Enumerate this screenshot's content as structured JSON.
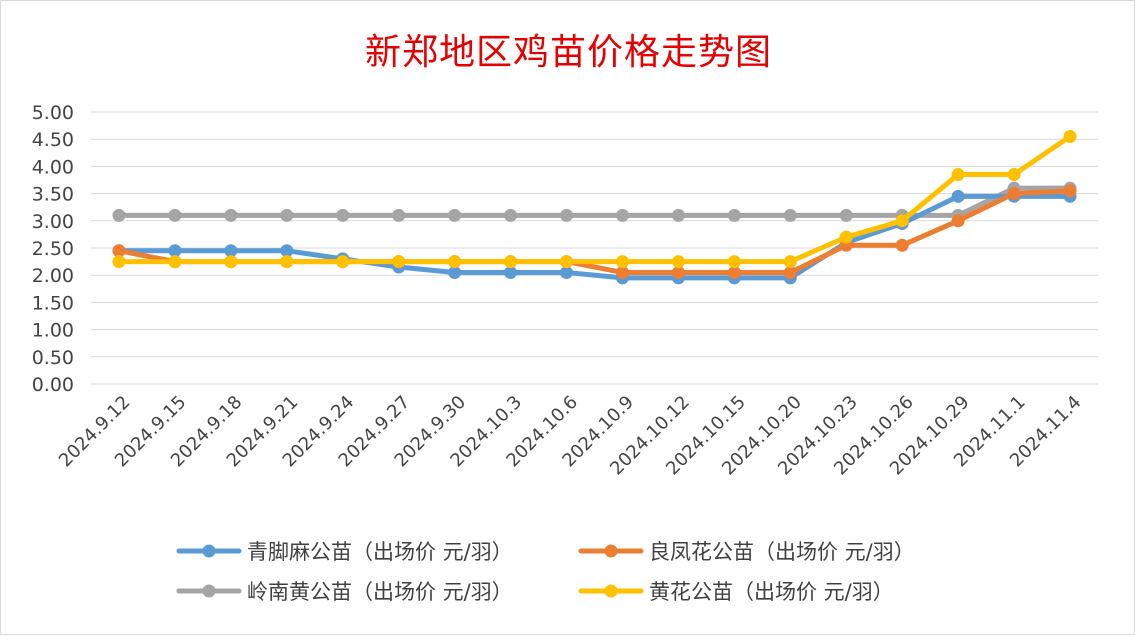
{
  "chart_data": {
    "type": "line",
    "title": "新郑地区鸡苗价格走势图",
    "xlabel": "",
    "ylabel": "",
    "ylim": [
      0,
      5
    ],
    "yticks": [
      "0.00",
      "0.50",
      "1.00",
      "1.50",
      "2.00",
      "2.50",
      "3.00",
      "3.50",
      "4.00",
      "4.50",
      "5.00"
    ],
    "grid": true,
    "legend_position": "bottom",
    "categories": [
      "2024.9.12",
      "2024.9.15",
      "2024.9.18",
      "2024.9.21",
      "2024.9.24",
      "2024.9.27",
      "2024.9.30",
      "2024.10.3",
      "2024.10.6",
      "2024.10.9",
      "2024.10.12",
      "2024.10.15",
      "2024.10.20",
      "2024.10.23",
      "2024.10.26",
      "2024.10.29",
      "2024.11.1",
      "2024.11.4"
    ],
    "series": [
      {
        "name": "青脚麻公苗（出场价 元/羽）",
        "color": "#5b9bd5",
        "values": [
          2.45,
          2.45,
          2.45,
          2.45,
          2.3,
          2.15,
          2.05,
          2.05,
          2.05,
          1.95,
          1.95,
          1.95,
          1.95,
          2.6,
          2.95,
          3.45,
          3.45,
          3.45
        ]
      },
      {
        "name": "良凤花公苗（出场价 元/羽）",
        "color": "#ed7d31",
        "values": [
          2.45,
          2.25,
          2.25,
          2.25,
          2.25,
          2.25,
          2.25,
          2.25,
          2.25,
          2.05,
          2.05,
          2.05,
          2.05,
          2.55,
          2.55,
          3.0,
          3.5,
          3.55
        ]
      },
      {
        "name": "岭南黄公苗（出场价 元/羽）",
        "color": "#a5a5a5",
        "values": [
          3.1,
          3.1,
          3.1,
          3.1,
          3.1,
          3.1,
          3.1,
          3.1,
          3.1,
          3.1,
          3.1,
          3.1,
          3.1,
          3.1,
          3.1,
          3.1,
          3.6,
          3.6
        ]
      },
      {
        "name": "黄花公苗（出场价 元/羽）",
        "color": "#ffc000",
        "values": [
          2.25,
          2.25,
          2.25,
          2.25,
          2.25,
          2.25,
          2.25,
          2.25,
          2.25,
          2.25,
          2.25,
          2.25,
          2.25,
          2.7,
          3.0,
          3.85,
          3.85,
          4.55
        ]
      }
    ],
    "draw_order": [
      2,
      0,
      1,
      3
    ]
  }
}
